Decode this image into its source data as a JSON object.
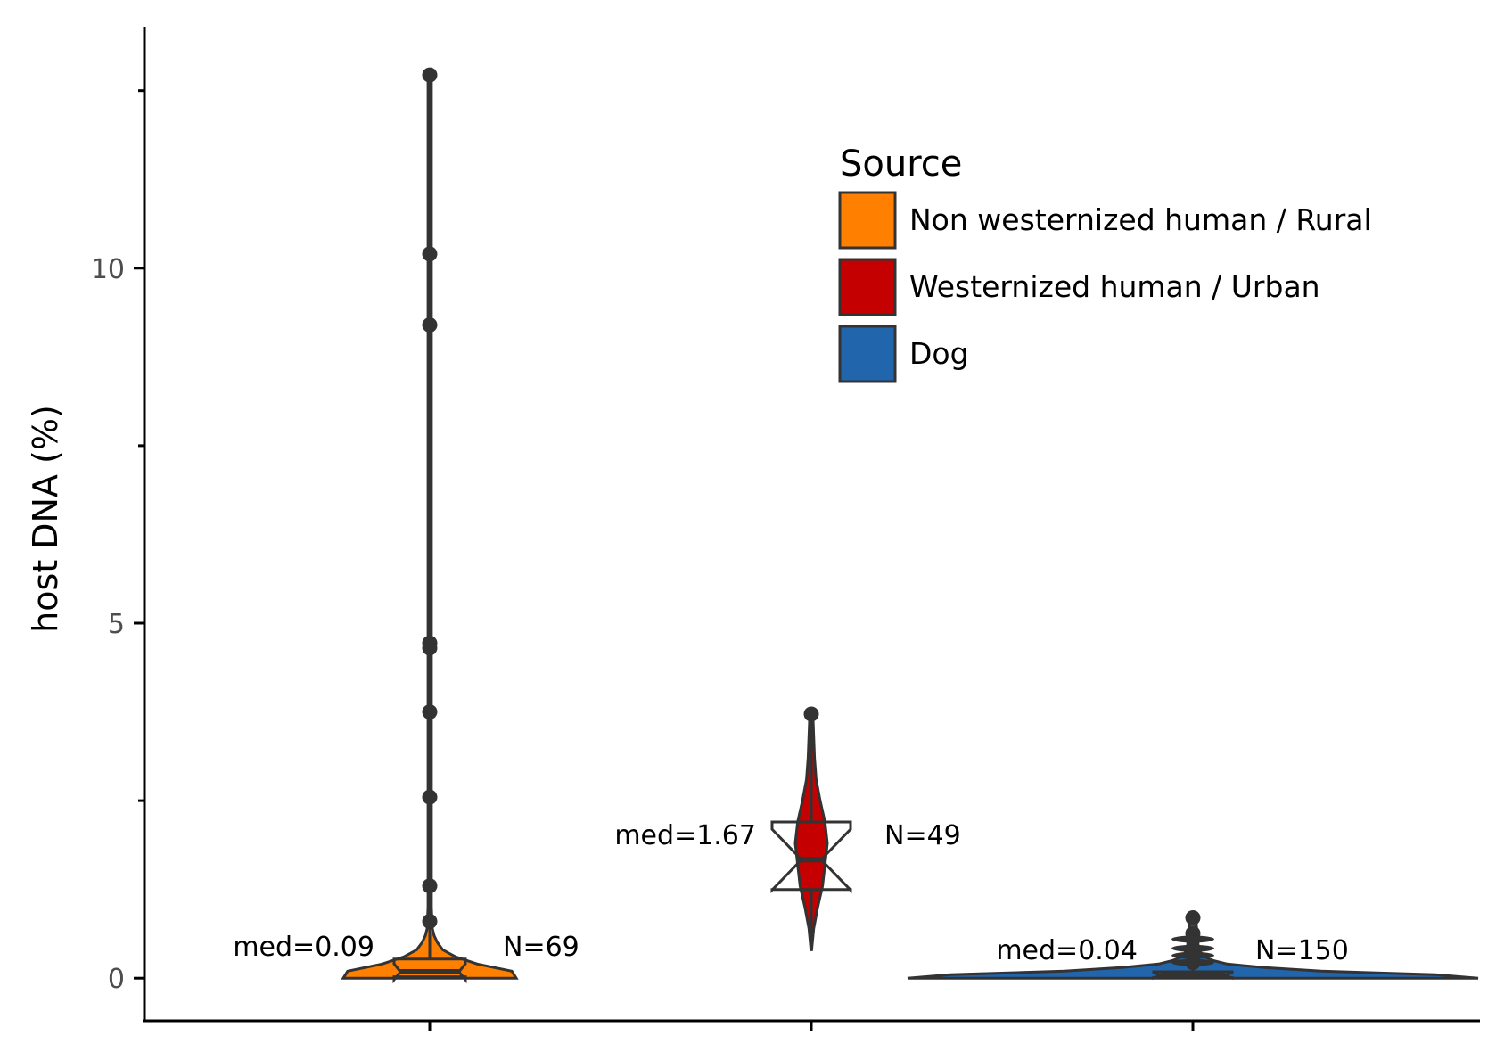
{
  "chart_data": {
    "type": "violin",
    "title": "",
    "xlabel": "",
    "ylabel": "host DNA (%)",
    "ylim": [
      -0.6,
      13.4
    ],
    "yticks": [
      0,
      5,
      10
    ],
    "ytick_labels": [
      "0",
      "5",
      "10"
    ],
    "legend": {
      "title": "Source",
      "placement": "top-right",
      "entries": [
        {
          "label": "Non westernized human / Rural",
          "color": "#ff7f00"
        },
        {
          "label": "Westernized human / Urban",
          "color": "#c40000"
        },
        {
          "label": "Dog",
          "color": "#2166ac"
        }
      ]
    },
    "series": [
      {
        "name": "Non westernized human / Rural",
        "color": "#ff7f00",
        "n": 69,
        "median": 0.09,
        "q1": 0.02,
        "q3": 0.27,
        "whisker_low": 0.0,
        "whisker_high": 0.62,
        "outliers": [
          0.8,
          1.3,
          2.55,
          3.75,
          4.65,
          4.72,
          9.2,
          10.2,
          12.72
        ],
        "density": [
          [
            0.0,
            1.0
          ],
          [
            0.1,
            0.95
          ],
          [
            0.2,
            0.55
          ],
          [
            0.3,
            0.3
          ],
          [
            0.4,
            0.15
          ],
          [
            0.5,
            0.09
          ],
          [
            0.6,
            0.05
          ],
          [
            0.7,
            0.03
          ],
          [
            1.0,
            0.02
          ],
          [
            12.72,
            0.02
          ]
        ],
        "median_label": "med=0.09",
        "n_label": "N=69"
      },
      {
        "name": "Westernized human / Urban",
        "color": "#c40000",
        "n": 49,
        "median": 1.67,
        "q1": 1.25,
        "q3": 2.2,
        "whisker_low": 0.4,
        "whisker_high": 3.7,
        "outliers": [
          3.72
        ],
        "density": [
          [
            0.4,
            0.02
          ],
          [
            0.7,
            0.15
          ],
          [
            1.0,
            0.4
          ],
          [
            1.3,
            0.7
          ],
          [
            1.6,
            0.85
          ],
          [
            1.9,
            1.0
          ],
          [
            2.2,
            0.85
          ],
          [
            2.5,
            0.55
          ],
          [
            2.8,
            0.3
          ],
          [
            3.1,
            0.2
          ],
          [
            3.4,
            0.15
          ],
          [
            3.7,
            0.1
          ]
        ],
        "median_label": "med=1.67",
        "n_label": "N=49"
      },
      {
        "name": "Dog",
        "color": "#2166ac",
        "n": 150,
        "median": 0.04,
        "q1": 0.01,
        "q3": 0.09,
        "whisker_low": 0.0,
        "whisker_high": 0.17,
        "outliers": [
          0.22,
          0.32,
          0.42,
          0.55,
          0.63,
          0.85
        ],
        "density": [
          [
            0.0,
            1.0
          ],
          [
            0.05,
            0.85
          ],
          [
            0.1,
            0.45
          ],
          [
            0.15,
            0.25
          ],
          [
            0.2,
            0.12
          ],
          [
            0.25,
            0.07
          ],
          [
            0.3,
            0.04
          ],
          [
            0.4,
            0.02
          ],
          [
            0.85,
            0.01
          ]
        ],
        "median_label": "med=0.04",
        "n_label": "N=150"
      }
    ]
  }
}
